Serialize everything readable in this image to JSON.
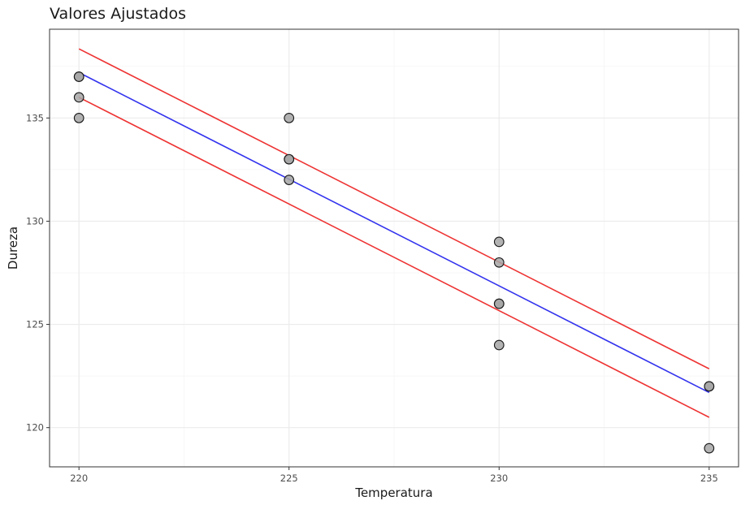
{
  "chart_data": {
    "type": "scatter",
    "title": "Valores Ajustados",
    "xlabel": "Temperatura",
    "ylabel": "Dureza",
    "xlim": [
      219.3,
      235.7
    ],
    "ylim": [
      118.1,
      139.3
    ],
    "x_ticks": [
      220,
      225,
      230,
      235
    ],
    "y_ticks": [
      120,
      125,
      130,
      135
    ],
    "grid": true,
    "points": [
      {
        "x": 220,
        "y": 137
      },
      {
        "x": 220,
        "y": 137
      },
      {
        "x": 220,
        "y": 136
      },
      {
        "x": 220,
        "y": 135
      },
      {
        "x": 225,
        "y": 135
      },
      {
        "x": 225,
        "y": 133
      },
      {
        "x": 225,
        "y": 133
      },
      {
        "x": 225,
        "y": 132
      },
      {
        "x": 230,
        "y": 129
      },
      {
        "x": 230,
        "y": 128
      },
      {
        "x": 230,
        "y": 126
      },
      {
        "x": 230,
        "y": 126
      },
      {
        "x": 230,
        "y": 124
      },
      {
        "x": 235,
        "y": 122
      },
      {
        "x": 235,
        "y": 122
      },
      {
        "x": 235,
        "y": 119
      }
    ],
    "lines": [
      {
        "role": "fit",
        "color": "#3333ee",
        "x": [
          220,
          235
        ],
        "y": [
          137.2,
          121.7
        ]
      },
      {
        "role": "upper",
        "color": "#ee3333",
        "x": [
          220,
          235
        ],
        "y": [
          138.35,
          122.85
        ]
      },
      {
        "role": "lower",
        "color": "#ee3333",
        "x": [
          220,
          235
        ],
        "y": [
          136.0,
          120.5
        ]
      }
    ],
    "colors": {
      "point_fill": "#a6a6a6",
      "point_stroke": "#1a1a1a",
      "panel_border": "#333333",
      "grid_major": "#ebebeb",
      "grid_minor": "#f5f5f5"
    }
  }
}
